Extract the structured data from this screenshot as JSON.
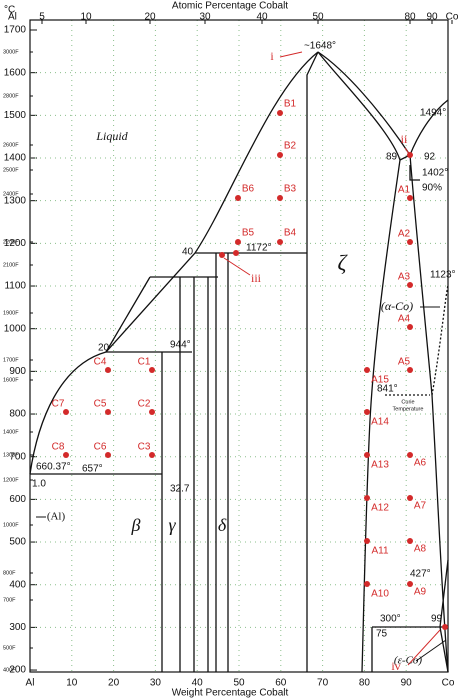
{
  "axes": {
    "unit": "°C",
    "top_title": "Atomic Percentage Cobalt",
    "bottom_title": "Weight Percentage Cobalt",
    "top_ticks": [
      "Al",
      "5",
      "10",
      "20",
      "30",
      "40",
      "50",
      "80",
      "90",
      "Co"
    ],
    "bottom_ticks": [
      "Al",
      "10",
      "20",
      "30",
      "40",
      "50",
      "60",
      "70",
      "80",
      "90",
      "Co"
    ],
    "left_ticks": [
      "1700",
      "1600",
      "1500",
      "1400",
      "1300",
      "1200",
      "1100",
      "1000",
      "900",
      "800",
      "700",
      "600",
      "500",
      "400",
      "300",
      "200"
    ],
    "f_ticks": [
      "3000F",
      "2800F",
      "2600F",
      "2500F",
      "2400F",
      "2200F",
      "2100F",
      "1900F",
      "1700F",
      "1600F",
      "1400F",
      "1300F",
      "1200F",
      "1000F",
      "800F",
      "700F",
      "500F",
      "400F"
    ]
  },
  "phases": [
    "Liquid",
    "ζ",
    "β",
    "γ",
    "δ",
    "(α-Co)",
    "(ε-Co)",
    "(Al)"
  ],
  "temperatures": [
    "~1648°",
    "1494°",
    "1402°",
    "1172°",
    "944°",
    "660.37°",
    "657°",
    "1123°",
    "841°",
    "427°",
    "300°"
  ],
  "compositions": [
    "40",
    "89",
    "92",
    "90%",
    "20",
    "32.7",
    "1.0",
    "75",
    "99"
  ],
  "markers": [
    "i",
    "ii",
    "iii",
    "iv"
  ],
  "curie": [
    "Curie",
    "Temperature"
  ],
  "points": [
    "B1",
    "B2",
    "B6",
    "B3",
    "B5",
    "B4",
    "C4",
    "C1",
    "C7",
    "C5",
    "C2",
    "C8",
    "C6",
    "C3",
    "A1",
    "A2",
    "A3",
    "A4",
    "A5",
    "A15",
    "A14",
    "A13",
    "A6",
    "A12",
    "A7",
    "A11",
    "A8",
    "A10",
    "A9"
  ]
}
